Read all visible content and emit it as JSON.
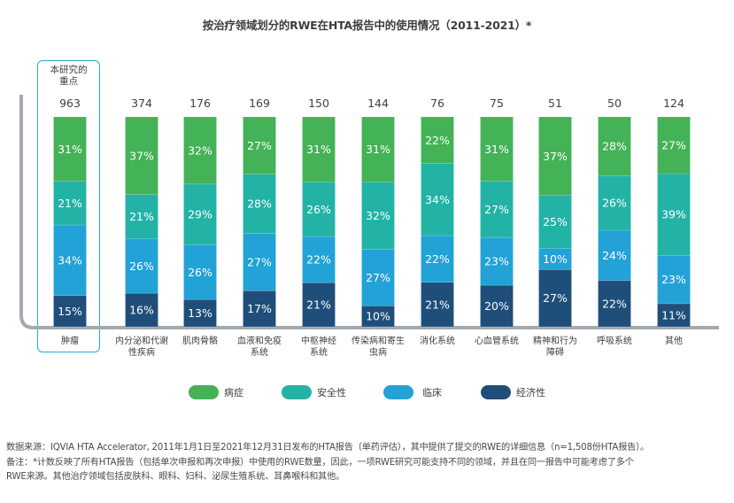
{
  "chart_data": {
    "type": "bar",
    "stacked": true,
    "percent": true,
    "title": "按治疗领域划分的RWE在HTA报告中的使用情况（2011-2021）*",
    "xlabel": "",
    "ylabel": "",
    "ylim": [
      0,
      100
    ],
    "grid": false,
    "legend_position": "bottom",
    "highlight": {
      "category": "肿瘤",
      "label_line1": "本研究的",
      "label_line2": "重点"
    },
    "categories": [
      {
        "line1": "肿瘤",
        "line2": ""
      },
      {
        "line1": "内分泌和代谢",
        "line2": "性疾病"
      },
      {
        "line1": "肌肉骨骼",
        "line2": ""
      },
      {
        "line1": "血液和免疫",
        "line2": "系统"
      },
      {
        "line1": "中枢神经",
        "line2": "系统"
      },
      {
        "line1": "传染病和寄生",
        "line2": "虫病"
      },
      {
        "line1": "消化系统",
        "line2": ""
      },
      {
        "line1": "心血管系统",
        "line2": ""
      },
      {
        "line1": "精神和行为",
        "line2": "障碍"
      },
      {
        "line1": "呼吸系统",
        "line2": ""
      },
      {
        "line1": "其他",
        "line2": ""
      }
    ],
    "totals": [
      963,
      374,
      176,
      169,
      150,
      144,
      76,
      75,
      51,
      50,
      124
    ],
    "series": [
      {
        "name": "经济性",
        "color": "#1f4e7a",
        "values": [
          15,
          16,
          13,
          17,
          21,
          10,
          21,
          20,
          27,
          22,
          11
        ]
      },
      {
        "name": "临床",
        "color": "#22a2d6",
        "values": [
          34,
          26,
          26,
          27,
          22,
          27,
          22,
          23,
          10,
          24,
          23
        ]
      },
      {
        "name": "安全性",
        "color": "#22b3a6",
        "values": [
          21,
          21,
          29,
          28,
          26,
          32,
          34,
          27,
          25,
          26,
          39
        ]
      },
      {
        "name": "病症",
        "color": "#44b257",
        "values": [
          31,
          37,
          32,
          27,
          31,
          31,
          22,
          31,
          37,
          28,
          27
        ]
      }
    ]
  },
  "legend": [
    {
      "label": "病症",
      "color": "#44b257"
    },
    {
      "label": "安全性",
      "color": "#22b3a6"
    },
    {
      "label": "临床",
      "color": "#22a2d6"
    },
    {
      "label": "经济性",
      "color": "#1f4e7a"
    }
  ],
  "colors": {
    "axis": "#a3a9b0",
    "highlight": "#29a8dc",
    "bar_label": "#ffffff"
  },
  "footer": {
    "line1": "数据来源：IQVIA HTA Accelerator, 2011年1月1日至2021年12月31日发布的HTA报告（单药评估），其中提供了提交的RWE的详细信息（n=1,508份HTA报告）。",
    "line2": "备注：*计数反映了所有HTA报告（包括单次申报和再次申报）中使用的RWE数量，因此，一项RWE研究可能支持不同的领域，并且在同一报告中可能考虑了多个",
    "line3": "RWE来源。其他治疗领域包括皮肤科、眼科、妇科、泌尿生殖系统、耳鼻喉科和其他。"
  }
}
